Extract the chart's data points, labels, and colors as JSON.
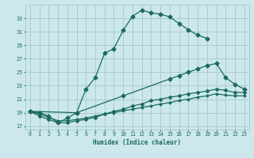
{
  "xlabel": "Humidex (Indice chaleur)",
  "background_color": "#cce8ec",
  "grid_color": "#aacccc",
  "line_color": "#1a6b5a",
  "xlim": [
    -0.5,
    23.5
  ],
  "ylim": [
    16.5,
    35.0
  ],
  "yticks": [
    17,
    19,
    21,
    23,
    25,
    27,
    29,
    31,
    33
  ],
  "xticks": [
    0,
    1,
    2,
    3,
    4,
    5,
    6,
    7,
    8,
    9,
    10,
    11,
    12,
    13,
    14,
    15,
    16,
    17,
    18,
    19,
    20,
    21,
    22,
    23
  ],
  "curve1_x": [
    0,
    1,
    2,
    3,
    4,
    5,
    6,
    7,
    8,
    9,
    10,
    11,
    12,
    13,
    14,
    15,
    16,
    17,
    18,
    19
  ],
  "curve1_y": [
    19.2,
    19.0,
    18.5,
    17.5,
    18.2,
    19.0,
    22.5,
    24.2,
    27.8,
    28.5,
    31.2,
    33.3,
    34.2,
    33.8,
    33.6,
    33.2,
    32.2,
    31.3,
    30.5,
    30.0
  ],
  "curve2_x": [
    0,
    5,
    10,
    15,
    16,
    17,
    18,
    19,
    20,
    21,
    22,
    23
  ],
  "curve2_y": [
    19.2,
    19.0,
    21.5,
    24.0,
    24.5,
    25.0,
    25.5,
    26.0,
    26.3,
    24.2,
    23.2,
    22.5
  ],
  "curve3_x": [
    0,
    1,
    2,
    3,
    4,
    5,
    6,
    7,
    8,
    9,
    10,
    11,
    12,
    13,
    14,
    15,
    16,
    17,
    18,
    19,
    20,
    21,
    22,
    23
  ],
  "curve3_y": [
    19.2,
    18.5,
    18.0,
    17.5,
    17.5,
    17.8,
    18.0,
    18.3,
    18.8,
    19.2,
    19.5,
    20.0,
    20.3,
    20.8,
    21.0,
    21.3,
    21.5,
    21.8,
    22.0,
    22.2,
    22.5,
    22.3,
    22.0,
    22.0
  ],
  "curve4_x": [
    0,
    1,
    2,
    3,
    4,
    5,
    6,
    7,
    8,
    9,
    10,
    11,
    12,
    13,
    14,
    15,
    16,
    17,
    18,
    19,
    20,
    21,
    22,
    23
  ],
  "curve4_y": [
    19.2,
    18.8,
    18.3,
    17.8,
    17.8,
    18.0,
    18.2,
    18.5,
    18.8,
    19.0,
    19.3,
    19.5,
    19.8,
    20.0,
    20.3,
    20.5,
    20.8,
    21.0,
    21.3,
    21.5,
    21.8,
    21.6,
    21.5,
    21.5
  ]
}
